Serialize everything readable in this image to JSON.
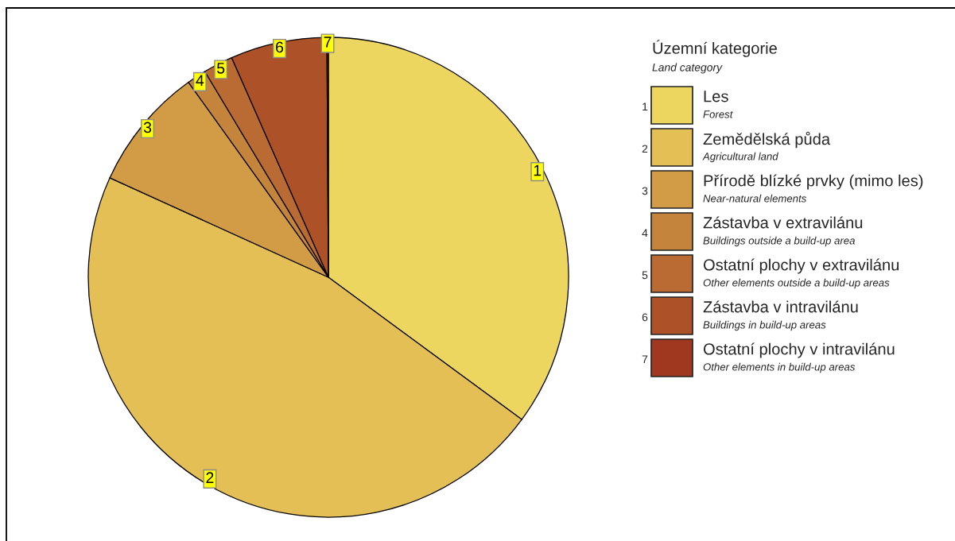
{
  "chart_data": {
    "type": "pie",
    "legend_title": "Územní kategorie\nLand category",
    "categories": [
      "Les\nForest",
      "Zemědělská půda\nAgricultural land",
      "Přírodě blízké prvky (mimo les)\nNear-natural elements",
      "Zástavba v extravilánu\nBuildings outside a build-up area",
      "Ostatní plochy v extravilánu\nOther elements outside a build-up areas",
      "Zástavba v intravilánu\nBuildings in build-up areas",
      "Ostatní plochy v intravilánu\nOther elements in build-up areas"
    ],
    "values": [
      35.1,
      46.7,
      8.3,
      1.3,
      2.0,
      6.5,
      0.1
    ],
    "colors": [
      "#edd660",
      "#e3bf55",
      "#d29c46",
      "#c5843c",
      "#b96b33",
      "#ac5128",
      "#9f381e"
    ],
    "annotations": [
      "1",
      "2",
      "3",
      "4",
      "5",
      "6",
      "7"
    ],
    "legend": "right"
  }
}
